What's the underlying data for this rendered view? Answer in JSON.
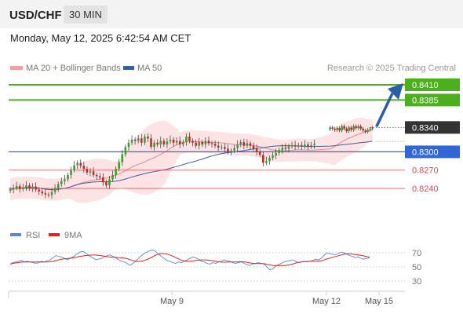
{
  "header": {
    "symbol": "USD/CHF",
    "timeframe": "30 MIN",
    "datetime": "Monday, May 12, 2025 6:42:54 AM CET"
  },
  "legend": {
    "bollinger_label": "MA 20 + Bollinger Bands",
    "ma50_label": "MA 50",
    "credit": "Research © 2025 Trading Central"
  },
  "rsi_legend": {
    "rsi_label": "RSI",
    "ma_label": "9MA"
  },
  "colors": {
    "target": "#4caf1e",
    "pivot": "#3066d6",
    "support": "#e8454b",
    "last": "#333333",
    "bands": "#fcd9d9",
    "ma20": "#e8858a",
    "ma50": "#3a5f9e",
    "up": "#3d9d37",
    "down": "#c02a27",
    "arrow": "#2c5ea8",
    "rsi": "#5b86d6",
    "rsi_ma": "#dd2222"
  },
  "chart_data": {
    "type": "candlestick",
    "price_levels": [
      {
        "label": "0.8410",
        "value": 0.841,
        "kind": "target"
      },
      {
        "label": "0.8385",
        "value": 0.8385,
        "kind": "target"
      },
      {
        "label": "0.8340",
        "value": 0.834,
        "kind": "last"
      },
      {
        "label": "0.8300",
        "value": 0.83,
        "kind": "pivot"
      },
      {
        "label": "0.8270",
        "value": 0.827,
        "kind": "support"
      },
      {
        "label": "0.8240",
        "value": 0.824,
        "kind": "support"
      }
    ],
    "x_ticks": [
      "May 9",
      "May 12",
      "May 15"
    ],
    "closes": [
      0.8238,
      0.8241,
      0.8244,
      0.8239,
      0.8242,
      0.8245,
      0.824,
      0.8243,
      0.8238,
      0.8235,
      0.8232,
      0.823,
      0.8229,
      0.8234,
      0.824,
      0.8247,
      0.8252,
      0.8255,
      0.8262,
      0.827,
      0.8278,
      0.8282,
      0.8277,
      0.8272,
      0.8266,
      0.8268,
      0.8262,
      0.826,
      0.8258,
      0.825,
      0.8245,
      0.8255,
      0.8262,
      0.8272,
      0.8283,
      0.8296,
      0.8308,
      0.8315,
      0.832,
      0.8318,
      0.8322,
      0.8315,
      0.8325,
      0.8322,
      0.8308,
      0.8315,
      0.8312,
      0.8318,
      0.8312,
      0.8317,
      0.832,
      0.8315,
      0.8318,
      0.8312,
      0.8316,
      0.8325,
      0.8318,
      0.8315,
      0.831,
      0.8316,
      0.8312,
      0.8318,
      0.8314,
      0.8313,
      0.831,
      0.8307,
      0.8308,
      0.8305,
      0.83,
      0.8302,
      0.8306,
      0.8312,
      0.8316,
      0.831,
      0.8314,
      0.831,
      0.8305,
      0.83,
      0.8295,
      0.8282,
      0.8285,
      0.829,
      0.8294,
      0.8298,
      0.8303,
      0.8307,
      0.8305,
      0.8309,
      0.8311,
      0.8309,
      0.8311,
      0.8309,
      0.8312,
      0.8309,
      0.8311,
      0.8313
    ],
    "recent_closes": [
      0.834,
      0.8338,
      0.8336,
      0.8339,
      0.8335,
      0.8342,
      0.8338,
      0.8334,
      0.834,
      0.8336,
      0.8342,
      0.8339,
      0.8342,
      0.8338,
      0.8335,
      0.8333,
      0.8336,
      0.8338,
      0.834
    ],
    "projection": {
      "from": 0.834,
      "to": 0.841
    },
    "rsi": {
      "levels": [
        70,
        50,
        30
      ],
      "values": [
        54,
        56,
        57,
        58,
        59,
        57,
        58,
        57,
        56,
        55,
        56,
        58,
        57,
        59,
        60,
        63,
        66,
        65,
        64,
        62,
        60,
        62,
        64,
        67,
        70,
        72,
        71,
        68,
        65,
        63,
        60,
        61,
        62,
        64,
        66,
        67,
        65,
        63,
        60,
        58,
        57,
        55,
        52,
        55,
        58,
        62,
        66,
        69,
        71,
        73,
        74,
        72,
        68,
        65,
        62,
        59,
        58,
        56,
        55,
        57,
        56,
        58,
        60,
        62,
        64,
        63,
        61,
        58,
        57,
        55,
        54,
        56,
        55,
        57,
        58,
        60,
        59,
        58,
        56,
        55,
        56,
        57,
        55,
        53,
        52,
        54,
        55,
        56,
        55,
        54,
        50,
        46,
        47,
        51,
        53,
        55,
        57,
        58,
        59,
        60,
        58,
        56,
        57,
        58,
        57,
        58,
        59,
        61,
        60,
        62,
        66,
        70,
        69,
        68,
        67,
        69,
        71,
        70,
        68,
        66,
        65,
        63,
        64,
        62,
        61,
        62,
        63
      ]
    }
  }
}
